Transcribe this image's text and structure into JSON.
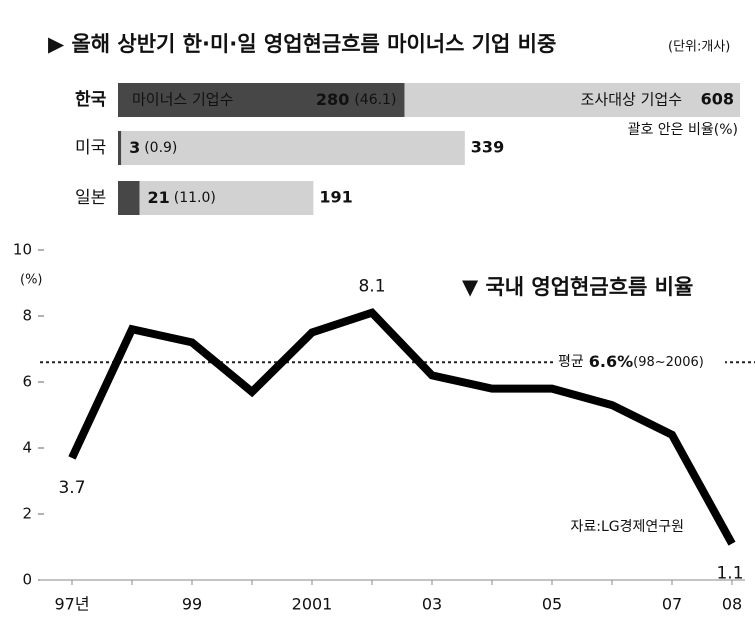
{
  "chart_data": [
    {
      "type": "hbar",
      "title": "▶ 올해 상반기 한·미·일 영업현금흐름 마이너스 기업 비중",
      "unit": "(단위:개사)",
      "note": "괄호 안은 비율(%)",
      "categories": [
        "한국",
        "미국",
        "일본"
      ],
      "series": [
        {
          "name": "마이너스 기업수",
          "color": "#474747",
          "values": [
            280,
            3,
            21
          ],
          "share_labels": [
            "(46.1)",
            "(0.9)",
            "(11.0)"
          ]
        },
        {
          "name": "조사대상 기업수",
          "color": "#d2d2d2",
          "values": [
            608,
            339,
            191
          ]
        }
      ]
    },
    {
      "type": "line",
      "title": "▼ 국내 영업현금흐름 비율",
      "y_unit": "(%)",
      "source": "자료:LG경제연구원",
      "categories": [
        "97년",
        null,
        "99",
        null,
        "2001",
        null,
        "03",
        null,
        "05",
        null,
        "07",
        "08"
      ],
      "values": [
        3.7,
        7.6,
        7.2,
        5.7,
        7.5,
        8.1,
        6.2,
        5.8,
        5.8,
        5.3,
        4.4,
        1.1
      ],
      "value_labels": [
        "3.7",
        null,
        null,
        null,
        null,
        "8.1",
        null,
        null,
        null,
        null,
        null,
        "1.1"
      ],
      "color": "#000000",
      "ylim": [
        0,
        10
      ],
      "yticks": [
        0,
        2,
        4,
        6,
        8,
        10
      ],
      "average": {
        "prefix": "평균",
        "value": 6.6,
        "label": "6.6%",
        "period": "(98~2006)"
      }
    }
  ]
}
